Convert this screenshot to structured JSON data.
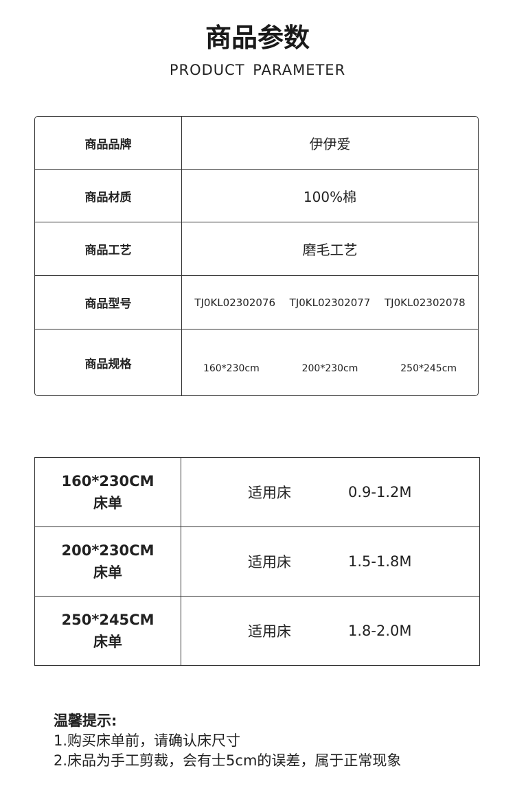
{
  "header": {
    "title": "商品参数",
    "subtitle": "PRODUCT PARAMETER"
  },
  "params": [
    {
      "label": "商品品牌",
      "value": "伊伊爱"
    },
    {
      "label": "商品材质",
      "value": "100%棉"
    },
    {
      "label": "商品工艺",
      "value": "磨毛工艺"
    },
    {
      "label": "商品型号",
      "values": [
        "TJ0KL02302076",
        "TJ0KL02302077",
        "TJ0KL02302078"
      ]
    },
    {
      "label": "商品规格",
      "values": [
        "160*230cm",
        "200*230cm",
        "250*245cm"
      ]
    }
  ],
  "sizes": [
    {
      "size": "160*230CM",
      "name": "床单",
      "bed_label": "适用床",
      "bed": "0.9-1.2M"
    },
    {
      "size": "200*230CM",
      "name": "床单",
      "bed_label": "适用床",
      "bed": "1.5-1.8M"
    },
    {
      "size": "250*245CM",
      "name": "床单",
      "bed_label": "适用床",
      "bed": "1.8-2.0M"
    }
  ],
  "tips": {
    "heading": "温馨提示:",
    "lines": [
      "1.购买床单前，请确认床尺寸",
      "2.床品为手工剪裁，会有士5cm的误差，属于正常现象"
    ]
  }
}
